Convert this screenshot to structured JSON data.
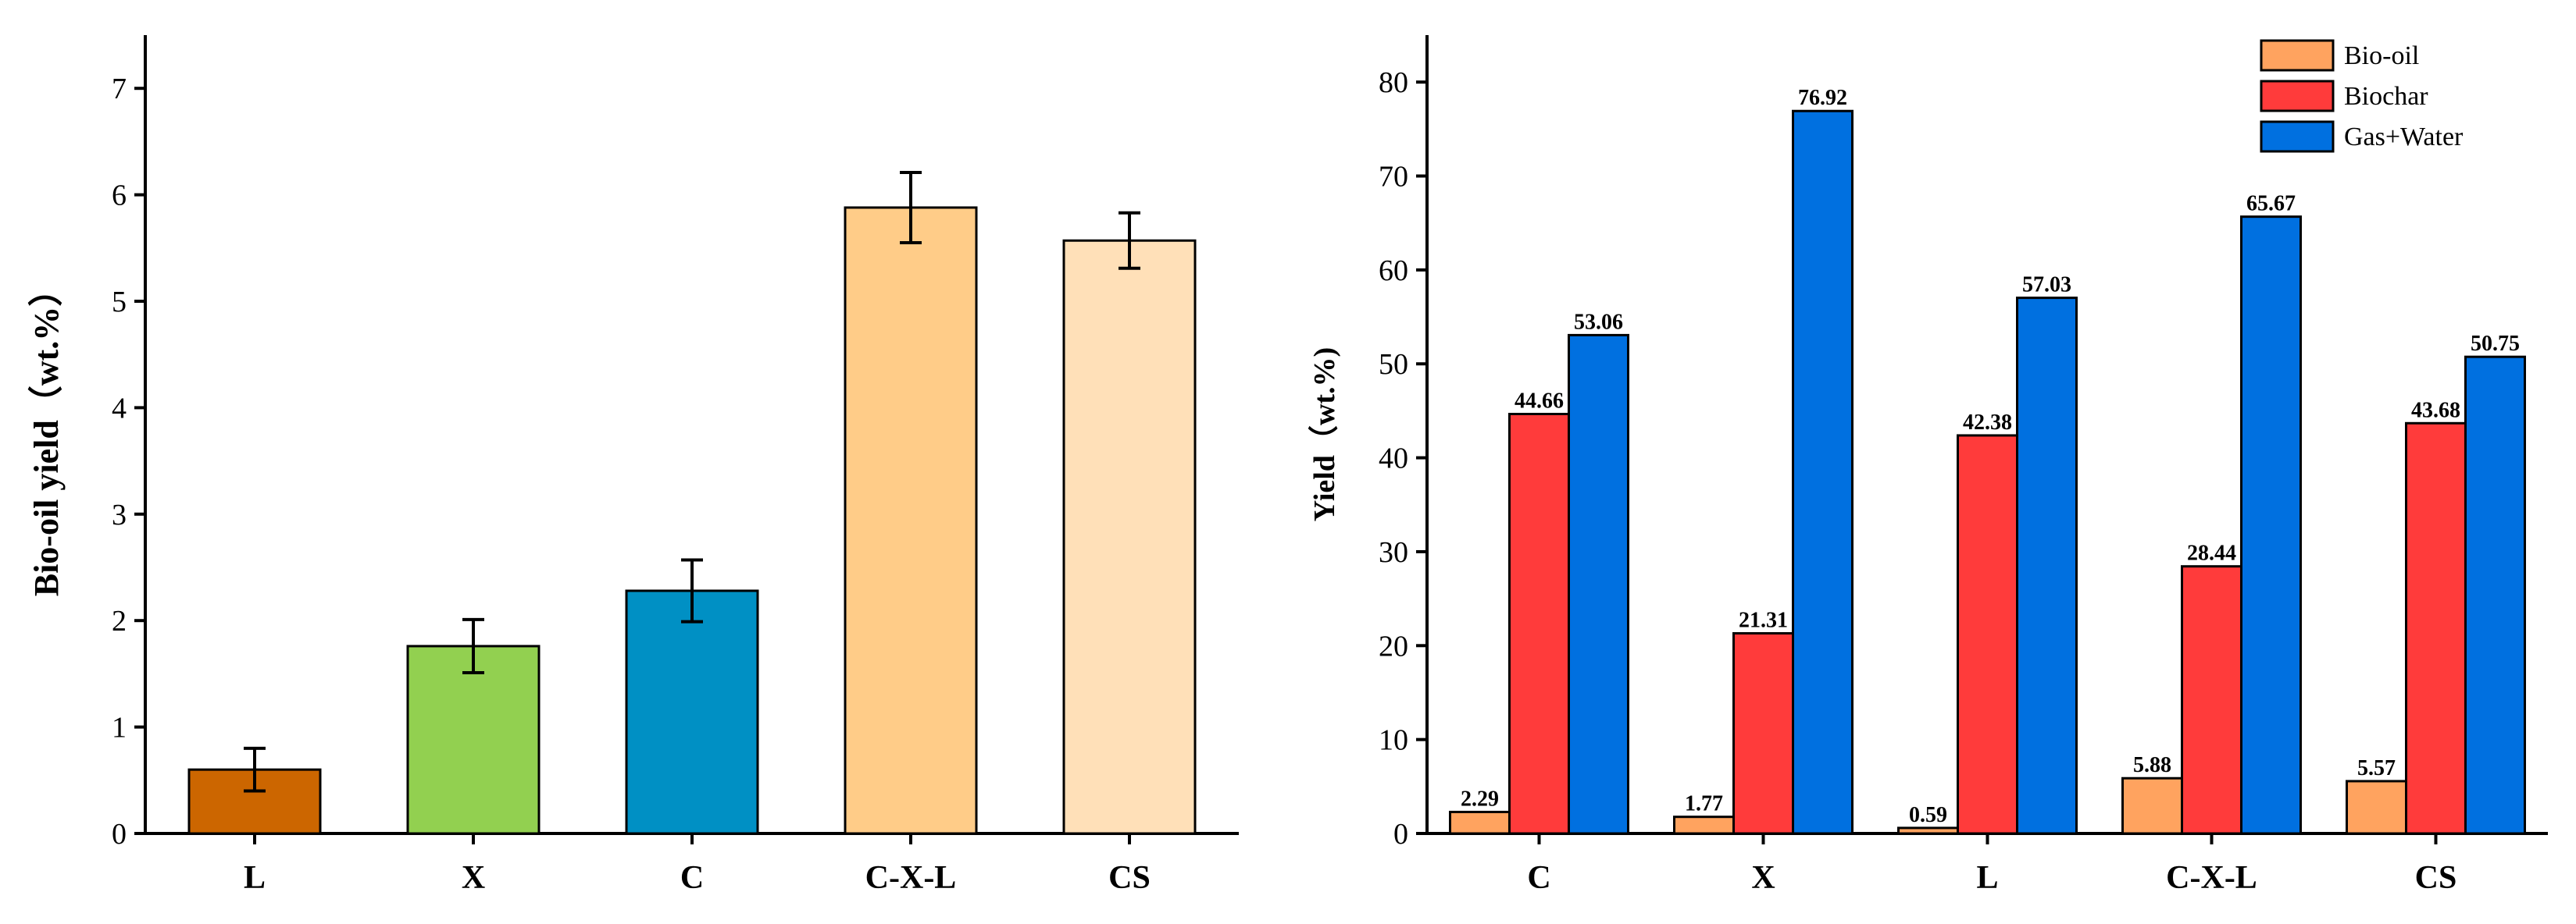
{
  "chart_data": [
    {
      "type": "bar",
      "title": "",
      "xlabel": "",
      "ylabel": "Bio-oil yield（wt.%）",
      "ylim": [
        0,
        7.5
      ],
      "yticks": [
        0,
        1,
        2,
        3,
        4,
        5,
        6,
        7
      ],
      "categories": [
        "L",
        "X",
        "C",
        "C-X-L",
        "CS"
      ],
      "values": [
        0.6,
        1.76,
        2.28,
        5.88,
        5.57
      ],
      "errors": [
        0.2,
        0.25,
        0.29,
        0.33,
        0.26
      ],
      "colors": [
        "#CC6600",
        "#92D050",
        "#0090C4",
        "#FFCC88",
        "#FFE0B8"
      ],
      "grid": false,
      "legend": null
    },
    {
      "type": "bar",
      "title": "",
      "xlabel": "",
      "ylabel": "Yield（wt.%)",
      "ylim": [
        0,
        85
      ],
      "yticks": [
        0,
        10,
        20,
        30,
        40,
        50,
        60,
        70,
        80
      ],
      "categories": [
        "C",
        "X",
        "L",
        "C-X-L",
        "CS"
      ],
      "series": [
        {
          "name": "Bio-oil",
          "color": "#FFA35F",
          "values": [
            2.29,
            1.77,
            0.59,
            5.88,
            5.57
          ],
          "labels": [
            "2.29",
            "1.77",
            "0.59",
            "5.88",
            "5.57"
          ]
        },
        {
          "name": "Biochar",
          "color": "#FF3B3B",
          "values": [
            44.66,
            21.31,
            42.38,
            28.44,
            43.68
          ],
          "labels": [
            "44.66",
            "21.31",
            "42.38",
            "28.44",
            "43.68"
          ]
        },
        {
          "name": "Gas+Water",
          "color": "#0070E0",
          "values": [
            53.06,
            76.92,
            57.03,
            65.67,
            50.75
          ],
          "labels": [
            "53.06",
            "76.92",
            "57.03",
            "65.67",
            "50.75"
          ]
        }
      ],
      "grid": false,
      "legend": "top-right"
    }
  ]
}
